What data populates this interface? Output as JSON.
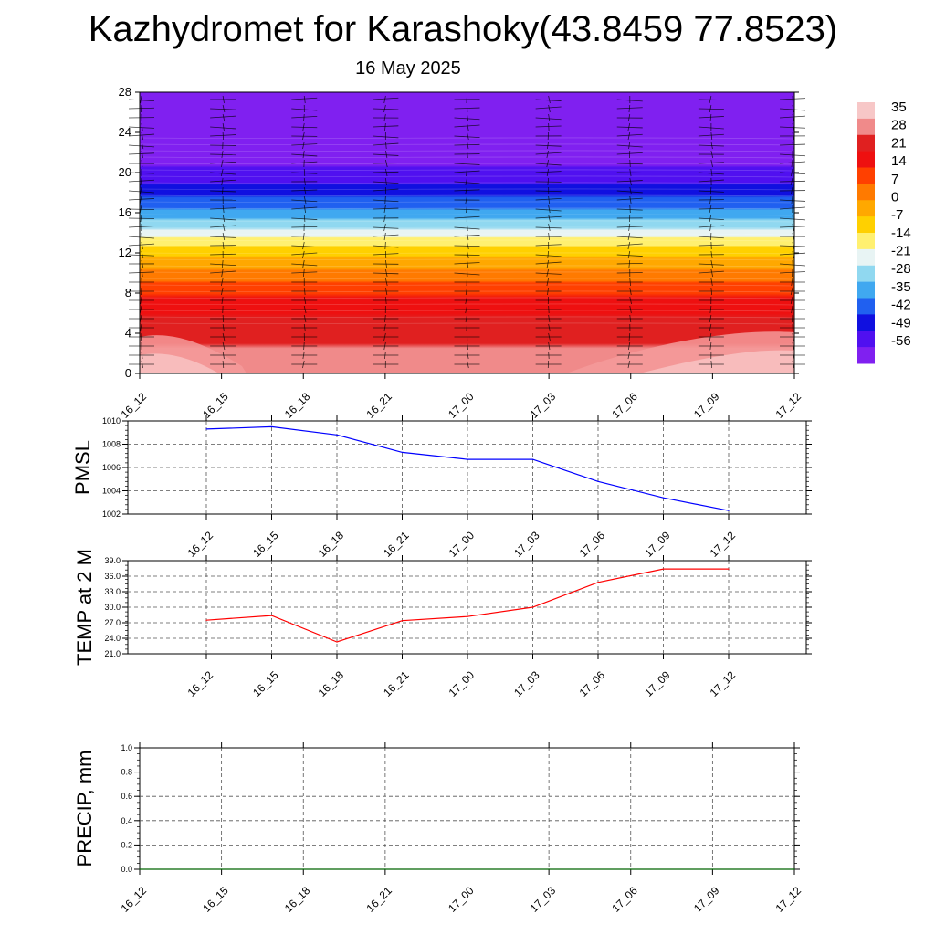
{
  "title": "Kazhydromet for Karashoky(43.8459 77.8523)",
  "subtitle": "16 May 2025",
  "chart_data": [
    {
      "type": "heatmap",
      "name": "vertical-temperature-cross-section",
      "x_ticks": [
        "16_12",
        "16_15",
        "16_18",
        "16_21",
        "17_00",
        "17_03",
        "17_06",
        "17_09",
        "17_12"
      ],
      "y_ticks": [
        0,
        4,
        8,
        12,
        16,
        20,
        24,
        28
      ],
      "ylim": [
        0,
        28
      ],
      "colorbar": {
        "labels": [
          "35",
          "28",
          "21",
          "14",
          "7",
          "0",
          "-7",
          "-14",
          "-21",
          "-28",
          "-35",
          "-42",
          "-49",
          "-56"
        ],
        "colors": [
          "#f7c7c7",
          "#f08a8a",
          "#e02020",
          "#ee1010",
          "#ff4000",
          "#ff7a00",
          "#ffa800",
          "#ffd000",
          "#fff070",
          "#e8f4f4",
          "#90d8f0",
          "#40a8f0",
          "#2060f0",
          "#1010e0",
          "#5010f0",
          "#8020f0"
        ]
      },
      "temperature_profile": [
        {
          "level": 0,
          "value": 30
        },
        {
          "level": 4,
          "value": 24
        },
        {
          "level": 8,
          "value": 12
        },
        {
          "level": 10,
          "value": 3
        },
        {
          "level": 12,
          "value": -7
        },
        {
          "level": 13,
          "value": -14
        },
        {
          "level": 14,
          "value": -21
        },
        {
          "level": 16,
          "value": -35
        },
        {
          "level": 18,
          "value": -45
        },
        {
          "level": 20,
          "value": -54
        },
        {
          "level": 22,
          "value": -60
        },
        {
          "level": 28,
          "value": -62
        }
      ],
      "wind_barbs": true
    },
    {
      "type": "line",
      "name": "pmsl",
      "ylabel": "PMSL",
      "x": [
        "16_12",
        "16_15",
        "16_18",
        "16_21",
        "17_00",
        "17_03",
        "17_06",
        "17_09",
        "17_12"
      ],
      "y_ticks": [
        1002,
        1004,
        1006,
        1008,
        1010
      ],
      "ylim": [
        1002,
        1010
      ],
      "values": [
        1009.3,
        1009.5,
        1008.8,
        1007.3,
        1006.7,
        1006.7,
        1004.8,
        1003.4,
        1002.3
      ],
      "color": "#0000ff",
      "grid": true
    },
    {
      "type": "line",
      "name": "temp-2m",
      "ylabel": "TEMP at 2 M",
      "x": [
        "16_12",
        "16_15",
        "16_18",
        "16_21",
        "17_00",
        "17_03",
        "17_06",
        "17_09",
        "17_12"
      ],
      "y_ticks": [
        "21.0",
        "24.0",
        "27.0",
        "30.0",
        "33.0",
        "36.0",
        "39.0"
      ],
      "ylim": [
        21,
        39
      ],
      "values": [
        27.5,
        28.4,
        23.3,
        27.4,
        28.2,
        30.0,
        34.8,
        37.4,
        37.4
      ],
      "color": "#ff0000",
      "grid": true
    },
    {
      "type": "line",
      "name": "precip",
      "ylabel": "PRECIP, mm",
      "x_ticks": [
        "16_12",
        "16_15",
        "16_18",
        "16_21",
        "17_00",
        "17_03",
        "17_06",
        "17_09",
        "17_12"
      ],
      "y_ticks": [
        "0.0",
        "0.2",
        "0.4",
        "0.6",
        "0.8",
        "1.0"
      ],
      "ylim": [
        0,
        1
      ],
      "values": [
        0,
        0,
        0,
        0,
        0,
        0,
        0,
        0,
        0
      ],
      "color": "#006400",
      "grid": true
    }
  ]
}
